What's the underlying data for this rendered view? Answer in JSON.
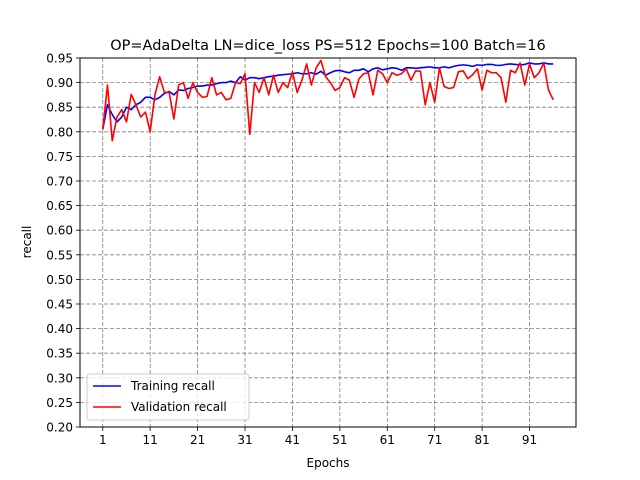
{
  "chart_data": {
    "type": "line",
    "title": "OP=AdaDelta LN=dice_loss PS=512 Epochs=100 Batch=16",
    "xlabel": "Epochs",
    "ylabel": "recall",
    "xlim": [
      -3.8,
      100.8
    ],
    "ylim": [
      0.2,
      0.95
    ],
    "xticks": [
      1,
      11,
      21,
      31,
      41,
      51,
      61,
      71,
      81,
      91
    ],
    "yticks": [
      0.2,
      0.25,
      0.3,
      0.35,
      0.4,
      0.45,
      0.5,
      0.55,
      0.6,
      0.65,
      0.7,
      0.75,
      0.8,
      0.85,
      0.9,
      0.95
    ],
    "grid": true,
    "legend_position": "lower-left",
    "series": [
      {
        "name": "Training recall",
        "color": "#0000ff",
        "x": [
          1,
          2,
          3,
          4,
          5,
          6,
          7,
          8,
          9,
          10,
          11,
          12,
          13,
          14,
          15,
          16,
          17,
          18,
          19,
          20,
          21,
          22,
          23,
          24,
          25,
          26,
          27,
          28,
          29,
          30,
          31,
          32,
          33,
          34,
          35,
          36,
          37,
          38,
          39,
          40,
          41,
          42,
          43,
          44,
          45,
          46,
          47,
          48,
          49,
          50,
          51,
          52,
          53,
          54,
          55,
          56,
          57,
          58,
          59,
          60,
          61,
          62,
          63,
          64,
          65,
          66,
          67,
          68,
          69,
          70,
          71,
          72,
          73,
          74,
          75,
          76,
          77,
          78,
          79,
          80,
          81,
          82,
          83,
          84,
          85,
          86,
          87,
          88,
          89,
          90,
          91,
          92,
          93,
          94,
          95,
          96
        ],
        "values": [
          0.805,
          0.855,
          0.835,
          0.82,
          0.83,
          0.85,
          0.845,
          0.855,
          0.86,
          0.87,
          0.87,
          0.865,
          0.87,
          0.878,
          0.882,
          0.875,
          0.885,
          0.884,
          0.888,
          0.89,
          0.893,
          0.893,
          0.895,
          0.895,
          0.898,
          0.9,
          0.9,
          0.903,
          0.9,
          0.912,
          0.905,
          0.91,
          0.91,
          0.908,
          0.91,
          0.912,
          0.913,
          0.915,
          0.916,
          0.917,
          0.918,
          0.92,
          0.918,
          0.918,
          0.92,
          0.917,
          0.923,
          0.915,
          0.92,
          0.924,
          0.925,
          0.922,
          0.92,
          0.925,
          0.925,
          0.928,
          0.922,
          0.928,
          0.93,
          0.926,
          0.928,
          0.93,
          0.929,
          0.925,
          0.93,
          0.93,
          0.929,
          0.93,
          0.931,
          0.932,
          0.93,
          0.93,
          0.932,
          0.93,
          0.933,
          0.935,
          0.936,
          0.935,
          0.933,
          0.936,
          0.935,
          0.937,
          0.937,
          0.935,
          0.935,
          0.937,
          0.938,
          0.937,
          0.936,
          0.937,
          0.94,
          0.938,
          0.938,
          0.94,
          0.938,
          0.938
        ]
      },
      {
        "name": "Validation recall",
        "color": "#ff0000",
        "x": [
          1,
          2,
          3,
          4,
          5,
          6,
          7,
          8,
          9,
          10,
          11,
          12,
          13,
          14,
          15,
          16,
          17,
          18,
          19,
          20,
          21,
          22,
          23,
          24,
          25,
          26,
          27,
          28,
          29,
          30,
          31,
          32,
          33,
          34,
          35,
          36,
          37,
          38,
          39,
          40,
          41,
          42,
          43,
          44,
          45,
          46,
          47,
          48,
          49,
          50,
          51,
          52,
          53,
          54,
          55,
          56,
          57,
          58,
          59,
          60,
          61,
          62,
          63,
          64,
          65,
          66,
          67,
          68,
          69,
          70,
          71,
          72,
          73,
          74,
          75,
          76,
          77,
          78,
          79,
          80,
          81,
          82,
          83,
          84,
          85,
          86,
          87,
          88,
          89,
          90,
          91,
          92,
          93,
          94,
          95,
          96
        ],
        "values": [
          0.805,
          0.895,
          0.782,
          0.83,
          0.845,
          0.82,
          0.876,
          0.855,
          0.83,
          0.84,
          0.8,
          0.875,
          0.912,
          0.88,
          0.88,
          0.826,
          0.895,
          0.9,
          0.868,
          0.9,
          0.88,
          0.87,
          0.872,
          0.91,
          0.875,
          0.88,
          0.865,
          0.868,
          0.9,
          0.898,
          0.918,
          0.795,
          0.9,
          0.88,
          0.91,
          0.875,
          0.915,
          0.88,
          0.9,
          0.89,
          0.922,
          0.88,
          0.905,
          0.938,
          0.895,
          0.93,
          0.945,
          0.912,
          0.9,
          0.884,
          0.89,
          0.91,
          0.905,
          0.87,
          0.907,
          0.918,
          0.92,
          0.875,
          0.925,
          0.918,
          0.9,
          0.92,
          0.915,
          0.918,
          0.928,
          0.905,
          0.924,
          0.923,
          0.855,
          0.9,
          0.86,
          0.93,
          0.892,
          0.888,
          0.89,
          0.922,
          0.924,
          0.908,
          0.916,
          0.928,
          0.885,
          0.925,
          0.92,
          0.92,
          0.91,
          0.86,
          0.925,
          0.92,
          0.94,
          0.895,
          0.938,
          0.91,
          0.92,
          0.94,
          0.885,
          0.865
        ]
      }
    ]
  }
}
